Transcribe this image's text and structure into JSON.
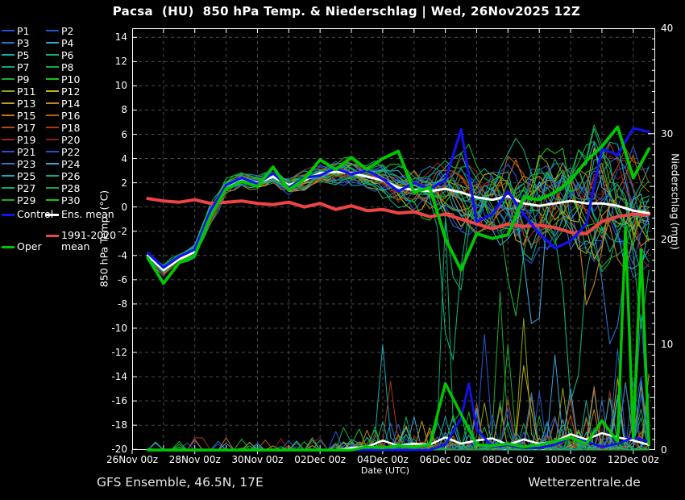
{
  "title": "Pacsa  (HU)  850 hPa Temp. & Niederschlag | Wed, 26Nov2025 12Z",
  "footer_left": "GFS Ensemble, 46.5N, 17E",
  "footer_right": "Wetterzentrale.de",
  "axes": {
    "y_left_label": "850 hPa Temp. (°C)",
    "y_right_label": "Niederschlag (mm)",
    "x_label": "Date (UTC)",
    "temp_ticks": [
      14,
      12,
      10,
      8,
      6,
      4,
      2,
      0,
      -2,
      -4,
      -6,
      -8,
      -10,
      -12,
      -14,
      -16,
      -18,
      -20
    ],
    "precip_tick_labels": [
      40,
      30,
      20,
      10,
      0
    ],
    "x_tick_labels": [
      "26Nov 00z",
      "28Nov 00z",
      "30Nov 00z",
      "02Dec 00z",
      "04Dec 00z",
      "06Dec 00z",
      "08Dec 00z",
      "10Dec 00z",
      "12Dec 00z"
    ]
  },
  "legend": {
    "control_label": "Control",
    "ens_mean_label": "Ens. mean",
    "climate_label_line1": "1991-2020",
    "climate_label_line2": "mean",
    "oper_label": "Oper"
  },
  "chart_data": {
    "type": "line",
    "title": "Pacsa (HU) 850 hPa Temp. & Niederschlag | Wed, 26Nov2025 12Z",
    "x_domain": [
      0,
      16.7
    ],
    "temp_axis": [
      -20.05,
      14.75
    ],
    "precip_axis": [
      0,
      40
    ],
    "grid_color": "#4a4a4a",
    "t0": 0.5,
    "dt": 0.5,
    "series": {
      "ens_mean": {
        "name": "Ens. mean",
        "color": "#ffffff",
        "width": 3,
        "temp": [
          -4.0,
          -5.2,
          -4.3,
          -3.7,
          -0.6,
          1.6,
          2.2,
          2.0,
          2.5,
          1.8,
          2.2,
          2.8,
          2.9,
          2.8,
          2.5,
          2.2,
          1.6,
          1.4,
          1.3,
          1.5,
          1.2,
          0.8,
          0.6,
          0.9,
          0.3,
          0.1,
          0.3,
          0.5,
          0.3,
          0.3,
          0.1,
          -0.3,
          -0.5
        ],
        "precip": [
          [
            0.5,
            0
          ],
          [
            6.5,
            0
          ],
          [
            7,
            0.2
          ],
          [
            7.5,
            0.3
          ],
          [
            8,
            0.9
          ],
          [
            8.5,
            0.4
          ],
          [
            9,
            0.6
          ],
          [
            9.5,
            0.5
          ],
          [
            10,
            1.2
          ],
          [
            10.5,
            0.6
          ],
          [
            11,
            0.9
          ],
          [
            11.5,
            1.1
          ],
          [
            12,
            0.5
          ],
          [
            12.5,
            1.0
          ],
          [
            13,
            0.6
          ],
          [
            13.5,
            0.8
          ],
          [
            14,
            1.5
          ],
          [
            14.5,
            1.0
          ],
          [
            15,
            1.6
          ],
          [
            15.5,
            1.2
          ],
          [
            16,
            0.9
          ],
          [
            16.5,
            0.5
          ]
        ]
      },
      "control": {
        "name": "Control",
        "color": "#1212ee",
        "width": 3.2,
        "temp": [
          -3.8,
          -5.0,
          -4.1,
          -3.5,
          -0.3,
          1.8,
          2.4,
          1.9,
          2.8,
          1.6,
          2.4,
          2.6,
          3.2,
          2.7,
          3.0,
          2.3,
          1.3,
          2.0,
          1.5,
          2.2,
          6.4,
          -1.2,
          -0.6,
          1.3,
          -0.6,
          -2.2,
          -3.4,
          -2.8,
          -1.4,
          4.8,
          4.3,
          6.5,
          6.2
        ],
        "precip": [
          [
            0.5,
            0
          ],
          [
            9.5,
            0
          ],
          [
            10,
            0.5
          ],
          [
            10.5,
            3.0
          ],
          [
            10.75,
            6.3
          ],
          [
            11,
            2.0
          ],
          [
            11.5,
            0.3
          ],
          [
            12,
            0.5
          ],
          [
            12.5,
            0.2
          ],
          [
            13,
            0.2
          ],
          [
            13.5,
            0.5
          ],
          [
            14,
            1.2
          ],
          [
            14.5,
            0.8
          ],
          [
            15,
            0.3
          ],
          [
            15.5,
            0.6
          ],
          [
            16,
            1.2
          ],
          [
            16.5,
            0.8
          ]
        ]
      },
      "oper": {
        "name": "Oper",
        "color": "#00c800",
        "width": 3.8,
        "temp": [
          -4.2,
          -6.3,
          -4.6,
          -4.0,
          -0.8,
          1.5,
          2.1,
          1.7,
          3.3,
          1.4,
          2.3,
          3.9,
          3.1,
          4.1,
          3.1,
          4.0,
          4.6,
          1.2,
          1.6,
          -2.6,
          -5.2,
          -2.2,
          -2.6,
          -2.3,
          0.8,
          0.6,
          1.2,
          2.2,
          3.8,
          5.0,
          6.6,
          2.4,
          4.8
        ],
        "precip": [
          [
            0.5,
            0
          ],
          [
            7,
            0
          ],
          [
            7.5,
            0.3
          ],
          [
            8,
            0.2
          ],
          [
            8.5,
            0.4
          ],
          [
            9,
            0.3
          ],
          [
            9.5,
            0.5
          ],
          [
            10,
            6.3
          ],
          [
            10.5,
            3.4
          ],
          [
            11,
            0.5
          ],
          [
            11.5,
            0.4
          ],
          [
            12,
            0.6
          ],
          [
            12.5,
            0.3
          ],
          [
            13,
            0.5
          ],
          [
            13.5,
            0.8
          ],
          [
            14,
            1.2
          ],
          [
            14.5,
            0.6
          ],
          [
            15,
            2.8
          ],
          [
            15.5,
            0.8
          ],
          [
            15.75,
            21.0
          ],
          [
            16,
            1.2
          ],
          [
            16.25,
            19.0
          ],
          [
            16.5,
            0.6
          ]
        ]
      },
      "climate": {
        "name": "1991-2020 mean",
        "color": "#ee4444",
        "width": 4,
        "temp": [
          0.7,
          0.5,
          0.4,
          0.6,
          0.3,
          0.4,
          0.5,
          0.3,
          0.2,
          0.4,
          0.0,
          0.3,
          -0.2,
          0.1,
          -0.3,
          -0.2,
          -0.5,
          -0.4,
          -0.8,
          -0.6,
          -1.0,
          -1.4,
          -1.8,
          -1.4,
          -1.6,
          -1.5,
          -1.7,
          -2.1,
          -2.2,
          -1.2,
          -0.8,
          -0.6,
          -0.6
        ]
      }
    },
    "members": {
      "labels": [
        "P1",
        "P2",
        "P3",
        "P4",
        "P5",
        "P6",
        "P7",
        "P8",
        "P9",
        "P10",
        "P11",
        "P12",
        "P13",
        "P14",
        "P15",
        "P16",
        "P17",
        "P18",
        "P19",
        "P20",
        "P21",
        "P22",
        "P23",
        "P24",
        "P25",
        "P26",
        "P27",
        "P28",
        "P29",
        "P30"
      ],
      "palette20": [
        "#2850d2",
        "#2555cd",
        "#2d74c8",
        "#3fa0d2",
        "#14a8b4",
        "#0faa86",
        "#0caa74",
        "#12a852",
        "#1cab2f",
        "#17c417",
        "#93a312",
        "#c3b414",
        "#c79b17",
        "#c78617",
        "#c77317",
        "#b55f0f",
        "#b04c12",
        "#a53a14",
        "#9d2420",
        "#8c1f1f"
      ],
      "seed": 11,
      "step": 0.25,
      "t_start": 0.5,
      "t_end": 16.5,
      "spread": [
        0.5,
        0.6,
        0.5,
        0.6,
        0.9,
        0.7,
        0.6,
        0.7,
        0.7,
        0.8,
        0.8,
        0.9,
        1.0,
        1.1,
        1.2,
        1.4,
        1.6,
        1.9,
        2.2,
        2.6,
        3.0,
        3.4,
        3.8,
        4.1,
        4.4,
        4.6,
        4.8,
        5.0,
        5.1,
        5.2,
        5.3,
        5.4,
        5.5
      ],
      "cold_events": [
        {
          "m": 6,
          "t": 10.15,
          "d": 16
        },
        {
          "m": 26,
          "t": 10.4,
          "d": 9
        },
        {
          "m": 8,
          "t": 12.2,
          "d": 10
        },
        {
          "m": 23,
          "t": 12.9,
          "d": 13
        },
        {
          "m": 5,
          "t": 14.1,
          "d": 12
        },
        {
          "m": 13,
          "t": 14.6,
          "d": 8
        },
        {
          "m": 27,
          "t": 16.3,
          "d": 13
        },
        {
          "m": 2,
          "t": 15.3,
          "d": 9
        }
      ],
      "precip_events": [
        {
          "m": 6,
          "t": 10.0,
          "v": 22.0
        },
        {
          "m": 4,
          "t": 8.1,
          "v": 10.0
        },
        {
          "m": 17,
          "t": 8.3,
          "v": 6.5
        },
        {
          "m": 1,
          "t": 11.2,
          "v": 11.0
        },
        {
          "m": 8,
          "t": 11.7,
          "v": 15.0
        },
        {
          "m": 28,
          "t": 12.0,
          "v": 10.0
        },
        {
          "m": 10,
          "t": 12.6,
          "v": 12.5
        },
        {
          "m": 23,
          "t": 13.6,
          "v": 9.0
        },
        {
          "m": 11,
          "t": 12.5,
          "v": 8.0
        },
        {
          "m": 21,
          "t": 15.55,
          "v": 9.6
        },
        {
          "m": 22,
          "t": 16.25,
          "v": 12.9
        }
      ]
    }
  }
}
